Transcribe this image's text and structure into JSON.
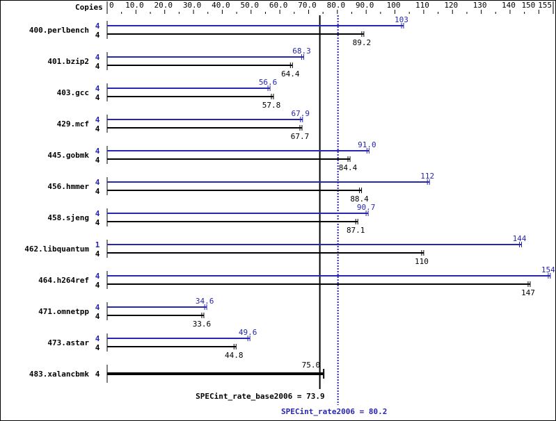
{
  "chart_data": {
    "type": "bar",
    "orientation": "horizontal",
    "xlim": [
      0,
      155
    ],
    "copies_header": "Copies",
    "tick_labels": [
      "0",
      "10.0",
      "20.0",
      "30.0",
      "40.0",
      "50.0",
      "60.0",
      "70.0",
      "80.0",
      "90.0",
      "100",
      "110",
      "120",
      "130",
      "140",
      "150",
      "155"
    ],
    "tick_values": [
      0,
      10,
      20,
      30,
      40,
      50,
      60,
      70,
      80,
      90,
      100,
      110,
      120,
      130,
      140,
      150,
      155
    ],
    "benchmarks": [
      {
        "name": "400.perlbench",
        "peak_copies": "4",
        "base_copies": "4",
        "peak": 103,
        "peak_label": "103",
        "base": 89.2,
        "base_label": "89.2"
      },
      {
        "name": "401.bzip2",
        "peak_copies": "4",
        "base_copies": "4",
        "peak": 68.3,
        "peak_label": "68.3",
        "base": 64.4,
        "base_label": "64.4"
      },
      {
        "name": "403.gcc",
        "peak_copies": "4",
        "base_copies": "4",
        "peak": 56.6,
        "peak_label": "56.6",
        "base": 57.8,
        "base_label": "57.8"
      },
      {
        "name": "429.mcf",
        "peak_copies": "4",
        "base_copies": "4",
        "peak": 67.9,
        "peak_label": "67.9",
        "base": 67.7,
        "base_label": "67.7"
      },
      {
        "name": "445.gobmk",
        "peak_copies": "4",
        "base_copies": "4",
        "peak": 91.0,
        "peak_label": "91.0",
        "base": 84.4,
        "base_label": "84.4"
      },
      {
        "name": "456.hmmer",
        "peak_copies": "4",
        "base_copies": "4",
        "peak": 112,
        "peak_label": "112",
        "base": 88.4,
        "base_label": "88.4"
      },
      {
        "name": "458.sjeng",
        "peak_copies": "4",
        "base_copies": "4",
        "peak": 90.7,
        "peak_label": "90.7",
        "base": 87.1,
        "base_label": "87.1"
      },
      {
        "name": "462.libquantum",
        "peak_copies": "1",
        "base_copies": "4",
        "peak": 144,
        "peak_label": "144",
        "base": 110,
        "base_label": "110"
      },
      {
        "name": "464.h264ref",
        "peak_copies": "4",
        "base_copies": "4",
        "peak": 154,
        "peak_label": "154",
        "base": 147,
        "base_label": "147"
      },
      {
        "name": "471.omnetpp",
        "peak_copies": "4",
        "base_copies": "4",
        "peak": 34.6,
        "peak_label": "34.6",
        "base": 33.6,
        "base_label": "33.6"
      },
      {
        "name": "473.astar",
        "peak_copies": "4",
        "base_copies": "4",
        "peak": 49.6,
        "peak_label": "49.6",
        "base": 44.8,
        "base_label": "44.8"
      },
      {
        "name": "483.xalancbmk",
        "base_copies": "4",
        "base": 75.0,
        "base_label": "75.0",
        "combined": true
      }
    ],
    "base_metric": {
      "label": "SPECint_rate_base2006 = 73.9",
      "value": 73.9
    },
    "peak_metric": {
      "label": "SPECint_rate2006 = 80.2",
      "value": 80.2
    },
    "colors": {
      "peak": "#2626b0",
      "base": "#000000"
    }
  }
}
